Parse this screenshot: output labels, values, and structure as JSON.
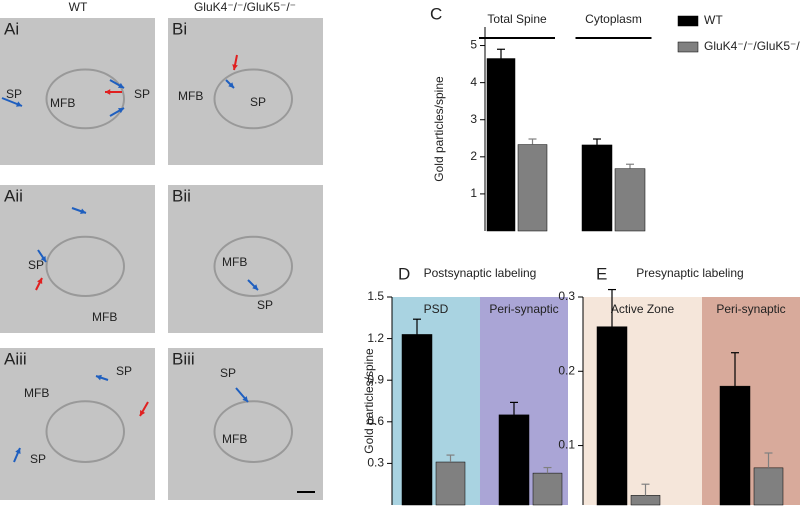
{
  "micrographs": {
    "columns": [
      "WT",
      "GluK4⁻/⁻/GluK5⁻/⁻"
    ],
    "panels": [
      {
        "label": "Ai",
        "annotations": [
          "SP",
          "MFB",
          "SP"
        ]
      },
      {
        "label": "Bi",
        "annotations": [
          "MFB",
          "SP"
        ]
      },
      {
        "label": "Aii",
        "annotations": [
          "SP",
          "MFB"
        ]
      },
      {
        "label": "Bii",
        "annotations": [
          "MFB",
          "SP"
        ]
      },
      {
        "label": "Aiii",
        "annotations": [
          "MFB",
          "SP",
          "SP"
        ]
      },
      {
        "label": "Biii",
        "annotations": [
          "SP",
          "MFB"
        ]
      }
    ]
  },
  "chart_data": [
    {
      "type": "bar",
      "panel": "C",
      "ylabel": "Gold particles/spine",
      "categories": [
        "Total Spine",
        "Cytoplasm"
      ],
      "series": [
        {
          "name": "WT",
          "color": "#000000",
          "values": [
            4.65,
            2.32
          ],
          "errors": [
            0.25,
            0.16
          ]
        },
        {
          "name": "GluK4⁻/⁻/GluK5⁻/⁻",
          "color": "#808080",
          "values": [
            2.33,
            1.68
          ],
          "errors": [
            0.15,
            0.12
          ]
        }
      ],
      "ylim": [
        0,
        5.5
      ],
      "yticks": [
        1,
        2,
        3,
        4,
        5
      ]
    },
    {
      "type": "bar",
      "panel": "D",
      "title": "Postsynaptic labeling",
      "ylabel": "Gold particles/spine",
      "categories": [
        "PSD",
        "Peri-synaptic"
      ],
      "region_colors": [
        "#a9d3e1",
        "#aaa5d6"
      ],
      "series": [
        {
          "color": "#000000",
          "values": [
            1.23,
            0.65
          ],
          "errors": [
            0.11,
            0.09
          ]
        },
        {
          "color": "#808080",
          "values": [
            0.31,
            0.23
          ],
          "errors": [
            0.05,
            0.04
          ]
        }
      ],
      "ylim": [
        0,
        1.5
      ],
      "yticks": [
        0.3,
        0.6,
        0.9,
        1.2,
        1.5
      ]
    },
    {
      "type": "bar",
      "panel": "E",
      "title": "Presynaptic labeling",
      "categories": [
        "Active Zone",
        "Peri-synaptic"
      ],
      "region_colors": [
        "#f5e6da",
        "#d8aa9b"
      ],
      "series": [
        {
          "color": "#000000",
          "values": [
            0.26,
            0.18
          ],
          "errors": [
            0.05,
            0.045
          ]
        },
        {
          "color": "#808080",
          "values": [
            0.033,
            0.07
          ],
          "errors": [
            0.015,
            0.02
          ]
        }
      ],
      "ylim": [
        0.02,
        0.3
      ],
      "yticks": [
        0.1,
        0.2,
        0.3
      ]
    }
  ]
}
